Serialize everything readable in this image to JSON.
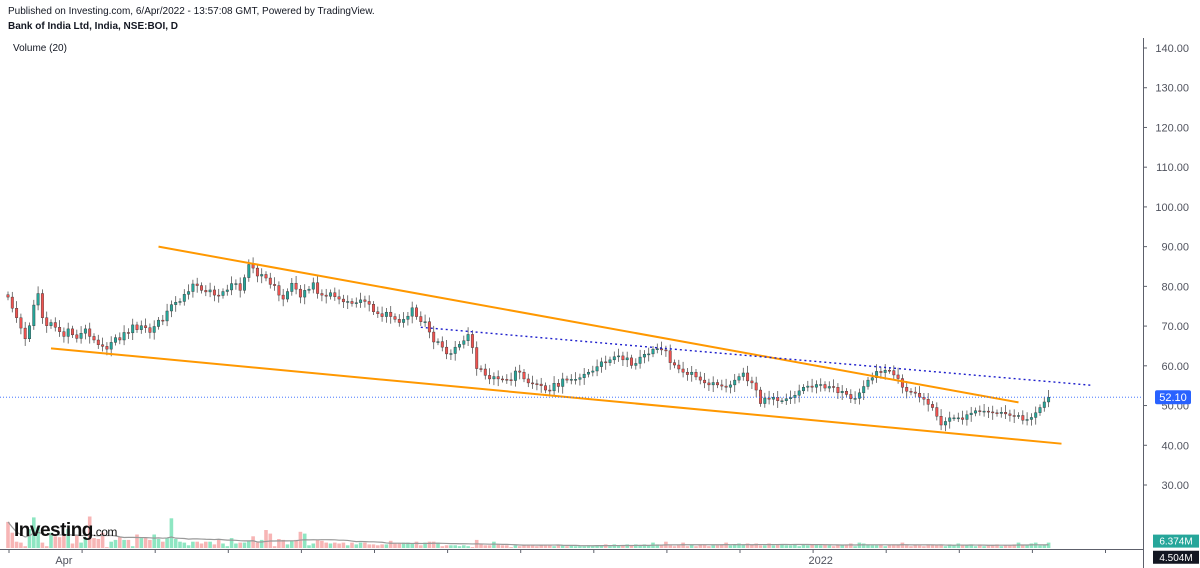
{
  "header": {
    "published": "Published on Investing.com, 6/Apr/2022 - 13:57:08 GMT, Powered by TradingView.",
    "symbol": "Bank of India Ltd, India, NSE:BOI, D",
    "volume_label": "Volume (20)"
  },
  "logo": {
    "main": "Investing",
    "suffix": ".com"
  },
  "colors": {
    "up": "#26a69a",
    "down": "#ef5350",
    "vol_up": "#8ee6c2",
    "vol_down": "#f7b5b5",
    "trend": "#ff9800",
    "dotted": "#1d1ecc",
    "last_price": "#2962ff"
  },
  "chart_data": {
    "type": "candlestick",
    "price_axis": {
      "min": 30,
      "max": 140,
      "ticks": [
        "140.00",
        "130.00",
        "120.00",
        "110.00",
        "100.00",
        "90.00",
        "80.00",
        "70.00",
        "60.00",
        "50.00",
        "40.00",
        "30.00"
      ]
    },
    "x_labels": [
      {
        "label": "Apr",
        "index": 13
      },
      {
        "label": "2022",
        "index": 189
      }
    ],
    "last_price_label": "52.10",
    "last_price": 52.1,
    "volume_labels": {
      "volume": "6.374M",
      "volume_ma": "4.504M"
    },
    "close": [
      77.3,
      74.5,
      72.1,
      69.5,
      66.8,
      70.1,
      75.3,
      78.2,
      72.1,
      70.1,
      70.9,
      69.7,
      68.6,
      67.4,
      69.3,
      67.8,
      66.9,
      68.2,
      69.3,
      67.4,
      66.5,
      65.3,
      64.9,
      64.2,
      65.9,
      67.1,
      66.5,
      68.4,
      68.3,
      70.3,
      69.1,
      70.1,
      69.6,
      68.4,
      69.9,
      71.5,
      71.3,
      73.8,
      75.4,
      76.0,
      76.2,
      78.0,
      78.7,
      80.6,
      80.2,
      79.0,
      78.6,
      79.1,
      77.8,
      77.7,
      78.7,
      79.1,
      80.7,
      80.7,
      79.0,
      82.2,
      85.5,
      84.6,
      82.6,
      83.0,
      82.1,
      80.5,
      80.2,
      77.8,
      76.8,
      78.7,
      80.8,
      79.3,
      77.3,
      79.0,
      79.3,
      80.9,
      78.2,
      77.8,
      77.5,
      78.4,
      77.4,
      76.8,
      76.1,
      76.2,
      75.7,
      75.9,
      76.6,
      76.2,
      75.5,
      73.6,
      73.1,
      72.4,
      73.5,
      72.4,
      71.7,
      70.9,
      71.7,
      72.5,
      74.6,
      72.4,
      71.1,
      71.1,
      68.5,
      66.0,
      66.1,
      64.7,
      63.0,
      63.1,
      64.7,
      65.4,
      66.3,
      67.9,
      64.6,
      59.3,
      59.2,
      57.6,
      56.7,
      57.3,
      56.7,
      56.6,
      56.5,
      56.3,
      58.7,
      58.4,
      56.7,
      55.7,
      55.5,
      55.4,
      55.0,
      53.9,
      53.7,
      55.6,
      54.8,
      56.7,
      56.4,
      56.6,
      56.6,
      57.0,
      57.9,
      58.4,
      58.7,
      59.8,
      61.0,
      60.8,
      61.5,
      62.3,
      62.5,
      61.5,
      62.0,
      60.1,
      60.6,
      62.2,
      62.9,
      63.0,
      64.2,
      64.3,
      64.0,
      63.8,
      60.8,
      60.2,
      59.2,
      58.4,
      57.8,
      58.4,
      57.2,
      56.4,
      55.7,
      55.2,
      55.8,
      55.2,
      54.9,
      54.6,
      55.2,
      56.4,
      57.3,
      58.2,
      56.2,
      55.7,
      53.9,
      50.5,
      51.9,
      51.6,
      52.1,
      51.2,
      51.2,
      51.7,
      52.0,
      52.6,
      53.7,
      54.6,
      54.9,
      54.6,
      55.3,
      55.3,
      54.4,
      54.8,
      54.6,
      53.2,
      53.6,
      52.8,
      51.7,
      51.8,
      53.2,
      54.8,
      56.4,
      57.0,
      58.6,
      58.3,
      58.9,
      58.8,
      57.7,
      56.8,
      54.6,
      53.6,
      53.4,
      53.1,
      52.1,
      51.6,
      50.3,
      49.5,
      47.3,
      45.1,
      46.0,
      46.9,
      46.9,
      46.9,
      46.5,
      47.7,
      48.1,
      48.7,
      48.5,
      48.6,
      48.4,
      48.2,
      48.0,
      48.3,
      47.9,
      47.5,
      47.4,
      47.5,
      46.3,
      46.5,
      47.0,
      48.2,
      49.5,
      50.9,
      52.1
    ],
    "volume": [
      2.9,
      1.7,
      0.7,
      0.6,
      0.2,
      2.1,
      3.4,
      2.3,
      0.6,
      0.2,
      1.7,
      1.3,
      1.2,
      1.4,
      2.1,
      0.5,
      1.4,
      0.6,
      1.2,
      3.5,
      1.1,
      1.0,
      1.7,
      0.1,
      0.7,
      0.9,
      1.2,
      0.9,
      0.9,
      0.2,
      1.5,
      1.1,
      1.1,
      0.9,
      1.5,
      1.0,
      0.7,
      1.1,
      3.3,
      1.0,
      0.7,
      0.6,
      0.3,
      0.7,
      0.7,
      0.5,
      0.7,
      0.7,
      0.4,
      0.9,
      0.5,
      0.2,
      1.1,
      0.5,
      0.6,
      0.6,
      0.8,
      1.3,
      0.6,
      0.9,
      2.0,
      1.6,
      0.2,
      1.0,
      0.9,
      0.4,
      0.8,
      0.9,
      1.8,
      1.6,
      0.3,
      0.5,
      0.9,
      0.8,
      0.6,
      0.5,
      0.6,
      0.5,
      0.6,
      0.3,
      0.6,
      0.4,
      0.6,
      0.6,
      0.4,
      0.4,
      0.3,
      0.4,
      0.4,
      0.8,
      0.5,
      0.5,
      0.6,
      0.6,
      0.5,
      0.7,
      0.3,
      0.6,
      0.7,
      0.7,
      0.6,
      0.2,
      0.3,
      0.3,
      0.3,
      0.2,
      0.3,
      0.2,
      0.1,
      0.9,
      0.4,
      0.3,
      0.3,
      0.7,
      0.4,
      0.3,
      0.3,
      0.1,
      0.3,
      0.2,
      0.3,
      0.3,
      0.3,
      0.2,
      0.3,
      0.3,
      0.3,
      0.2,
      0.3,
      0.3,
      0.2,
      0.3,
      0.2,
      0.2,
      0.2,
      0.3,
      0.2,
      0.3,
      0.3,
      0.4,
      0.2,
      0.4,
      0.3,
      0.3,
      0.4,
      0.3,
      0.4,
      0.3,
      0.4,
      0.3,
      0.6,
      0.4,
      0.3,
      0.7,
      0.3,
      0.2,
      0.3,
      0.6,
      0.2,
      0.4,
      0.2,
      0.4,
      0.4,
      0.2,
      0.3,
      0.3,
      0.4,
      0.6,
      0.3,
      0.4,
      0.5,
      0.4,
      0.5,
      0.4,
      0.5,
      0.3,
      0.3,
      0.5,
      0.3,
      0.4,
      0.4,
      0.3,
      0.3,
      0.4,
      0.2,
      0.4,
      0.3,
      0.4,
      0.4,
      0.3,
      0.4,
      0.3,
      0.2,
      0.3,
      0.3,
      0.4,
      0.5,
      0.2,
      0.6,
      0.5,
      0.4,
      0.3,
      0.3,
      0.4,
      0.2,
      0.3,
      0.4,
      0.3,
      0.6,
      0.3,
      0.2,
      0.3,
      0.3,
      0.2,
      0.4,
      0.3,
      0.3,
      0.3,
      0.2,
      0.4,
      0.3,
      0.5,
      0.3,
      0.3,
      0.4,
      0.2,
      0.4,
      0.2,
      0.3,
      0.3,
      0.4,
      0.2,
      0.3,
      0.3,
      0.4,
      0.6,
      0.3,
      0.3,
      0.5,
      0.6,
      0.3,
      0.3,
      0.6
    ]
  },
  "annotations": {
    "upper_trendline": [
      [
        35,
        90.0
      ],
      [
        235,
        50.8
      ]
    ],
    "lower_trendline": [
      [
        10,
        64.4
      ],
      [
        245,
        40.4
      ]
    ],
    "dotted_line": [
      [
        96,
        69.7
      ],
      [
        252,
        55.1
      ]
    ]
  }
}
